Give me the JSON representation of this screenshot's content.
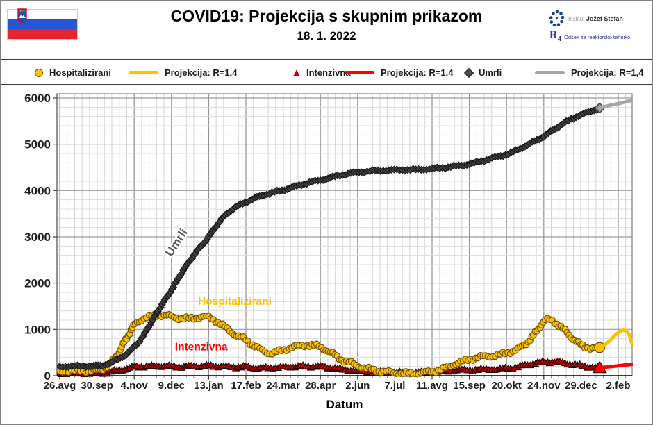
{
  "header": {
    "title": "COVID19: Projekcija s skupnim prikazom",
    "date": "18. 1. 2022",
    "flag": "slovenia-flag",
    "logo": {
      "institute_prefix": "Institut",
      "institute_bold": "Jožef Stefan",
      "dept_symbol": "R",
      "dept_symbol_sub": "4",
      "dept_name": "Odsek za reaktorsko tehniko"
    }
  },
  "legend": {
    "items": [
      {
        "label": "Hospitalizirani",
        "marker": "circle",
        "color": "#FFC000"
      },
      {
        "label": "Projekcija: R=1,4",
        "marker": "line",
        "color": "#FFC000"
      },
      {
        "label": "Intenzivna",
        "marker": "triangle",
        "color": "#D00000"
      },
      {
        "label": "Projekcija: R=1,4",
        "marker": "line",
        "color": "#FF0000"
      },
      {
        "label": "Umrli",
        "marker": "diamond",
        "color": "#4d4d4d"
      },
      {
        "label": "Projekcija: R=1,4",
        "marker": "line",
        "color": "#A6A6A6"
      }
    ]
  },
  "chart_data": {
    "type": "scatter",
    "title": "COVID19: Projekcija s skupnim prikazom",
    "subtitle": "18. 1. 2022",
    "xlabel": "Datum",
    "ylabel": "",
    "ylim": [
      0,
      6000
    ],
    "y_ticks": [
      0,
      1000,
      2000,
      3000,
      4000,
      5000,
      6000
    ],
    "y_minor_step": 200,
    "x_ticks": [
      "26.avg",
      "30.sep",
      "4.nov",
      "9.dec",
      "13.jan",
      "17.feb",
      "24.mar",
      "28.apr",
      "2.jun",
      "7.jul",
      "11.avg",
      "15.sep",
      "20.okt",
      "24.nov",
      "29.dec",
      "2.feb"
    ],
    "x_minor_per_major": 5,
    "x_unit": "series x = tick-interval index from 26.avg.2020 (ticks 35 days apart)",
    "grid": "major+minor on both axes",
    "legend_position": "top",
    "series": [
      {
        "name": "Intenzivna",
        "role": "data",
        "marker": "triangle",
        "color": "#C00000",
        "edge_color": "#1a0000",
        "end_marker": {
          "color": "#FF0000",
          "edge": "#3d0000",
          "scale": 2.0
        },
        "points": [
          [
            0,
            45
          ],
          [
            0.5,
            48
          ],
          [
            1,
            52
          ],
          [
            1.3,
            70
          ],
          [
            1.6,
            120
          ],
          [
            1.9,
            170
          ],
          [
            2.1,
            195
          ],
          [
            2.4,
            205
          ],
          [
            2.7,
            208
          ],
          [
            3,
            200
          ],
          [
            3.3,
            196
          ],
          [
            3.6,
            205
          ],
          [
            3.9,
            212
          ],
          [
            4.1,
            208
          ],
          [
            4.4,
            196
          ],
          [
            4.7,
            188
          ],
          [
            5,
            186
          ],
          [
            5.3,
            170
          ],
          [
            5.6,
            166
          ],
          [
            5.9,
            178
          ],
          [
            6.2,
            192
          ],
          [
            6.5,
            200
          ],
          [
            6.8,
            200
          ],
          [
            7,
            196
          ],
          [
            7.3,
            168
          ],
          [
            7.6,
            132
          ],
          [
            8,
            106
          ],
          [
            8.4,
            82
          ],
          [
            8.8,
            70
          ],
          [
            9.2,
            64
          ],
          [
            9.6,
            66
          ],
          [
            10,
            78
          ],
          [
            10.4,
            104
          ],
          [
            10.8,
            118
          ],
          [
            11.2,
            128
          ],
          [
            11.6,
            138
          ],
          [
            12,
            152
          ],
          [
            12.3,
            190
          ],
          [
            12.6,
            240
          ],
          [
            12.9,
            285
          ],
          [
            13.1,
            300
          ],
          [
            13.4,
            286
          ],
          [
            13.7,
            256
          ],
          [
            14,
            216
          ],
          [
            14.3,
            182
          ],
          [
            14.5,
            172
          ]
        ]
      },
      {
        "name": "Projekcija: R=1,4 (Intenzivna)",
        "role": "projection",
        "marker": null,
        "color": "#FF0000",
        "line_width": 5,
        "points": [
          [
            14.5,
            172
          ],
          [
            14.8,
            196
          ],
          [
            15.1,
            224
          ],
          [
            15.37,
            248
          ]
        ]
      },
      {
        "name": "Hospitalizirani",
        "role": "data",
        "marker": "circle",
        "color": "#FFC000",
        "edge_color": "#6b5200",
        "end_marker": {
          "color": "#FFC000",
          "edge": "#5a4300",
          "scale": 1.7
        },
        "points": [
          [
            0,
            100
          ],
          [
            0.4,
            102
          ],
          [
            0.8,
            106
          ],
          [
            1,
            115
          ],
          [
            1.2,
            165
          ],
          [
            1.5,
            400
          ],
          [
            1.8,
            820
          ],
          [
            2,
            1090
          ],
          [
            2.2,
            1215
          ],
          [
            2.5,
            1292
          ],
          [
            2.7,
            1308
          ],
          [
            2.9,
            1295
          ],
          [
            3.1,
            1262
          ],
          [
            3.3,
            1235
          ],
          [
            3.6,
            1242
          ],
          [
            3.8,
            1268
          ],
          [
            4,
            1258
          ],
          [
            4.2,
            1182
          ],
          [
            4.5,
            1010
          ],
          [
            4.8,
            845
          ],
          [
            5,
            778
          ],
          [
            5.3,
            602
          ],
          [
            5.6,
            498
          ],
          [
            5.8,
            506
          ],
          [
            6,
            556
          ],
          [
            6.3,
            626
          ],
          [
            6.6,
            658
          ],
          [
            6.8,
            654
          ],
          [
            7,
            618
          ],
          [
            7.3,
            488
          ],
          [
            7.6,
            338
          ],
          [
            7.9,
            252
          ],
          [
            8.2,
            168
          ],
          [
            8.5,
            110
          ],
          [
            8.8,
            82
          ],
          [
            9.1,
            58
          ],
          [
            9.4,
            48
          ],
          [
            9.7,
            62
          ],
          [
            10,
            92
          ],
          [
            10.3,
            148
          ],
          [
            10.6,
            252
          ],
          [
            10.9,
            322
          ],
          [
            11.2,
            392
          ],
          [
            11.5,
            420
          ],
          [
            11.8,
            448
          ],
          [
            12.1,
            516
          ],
          [
            12.4,
            618
          ],
          [
            12.7,
            846
          ],
          [
            12.95,
            1128
          ],
          [
            13.1,
            1208
          ],
          [
            13.3,
            1155
          ],
          [
            13.6,
            948
          ],
          [
            13.9,
            718
          ],
          [
            14.1,
            632
          ],
          [
            14.35,
            588
          ],
          [
            14.5,
            608
          ]
        ]
      },
      {
        "name": "Projekcija: R=1,4 (Hospitalizirani)",
        "role": "projection",
        "marker": null,
        "color": "#FFC000",
        "line_width": 5,
        "points": [
          [
            14.5,
            608
          ],
          [
            14.72,
            718
          ],
          [
            14.92,
            880
          ],
          [
            15.08,
            968
          ],
          [
            15.18,
            978
          ],
          [
            15.28,
            905
          ],
          [
            15.37,
            692
          ]
        ]
      },
      {
        "name": "Umrli",
        "role": "data",
        "marker": "diamond",
        "color": "#404040",
        "edge_color": "#141414",
        "end_marker": {
          "color": "#909090",
          "edge": "#303030",
          "scale": 1.5
        },
        "points": [
          [
            0,
            200
          ],
          [
            0.4,
            204
          ],
          [
            0.8,
            210
          ],
          [
            1,
            216
          ],
          [
            1.2,
            232
          ],
          [
            1.5,
            330
          ],
          [
            1.8,
            472
          ],
          [
            2,
            628
          ],
          [
            2.2,
            806
          ],
          [
            2.4,
            1082
          ],
          [
            2.6,
            1352
          ],
          [
            2.8,
            1606
          ],
          [
            3,
            1852
          ],
          [
            3.3,
            2254
          ],
          [
            3.6,
            2602
          ],
          [
            4,
            3002
          ],
          [
            4.3,
            3332
          ],
          [
            4.6,
            3572
          ],
          [
            5,
            3752
          ],
          [
            5.3,
            3852
          ],
          [
            5.6,
            3932
          ],
          [
            6,
            4012
          ],
          [
            6.3,
            4082
          ],
          [
            6.6,
            4152
          ],
          [
            7,
            4222
          ],
          [
            7.3,
            4282
          ],
          [
            7.6,
            4342
          ],
          [
            8,
            4392
          ],
          [
            8.4,
            4422
          ],
          [
            8.8,
            4438
          ],
          [
            9.2,
            4446
          ],
          [
            9.6,
            4452
          ],
          [
            10,
            4472
          ],
          [
            10.5,
            4512
          ],
          [
            11,
            4572
          ],
          [
            11.4,
            4652
          ],
          [
            12,
            4782
          ],
          [
            12.3,
            4882
          ],
          [
            12.6,
            5002
          ],
          [
            13,
            5172
          ],
          [
            13.3,
            5332
          ],
          [
            13.6,
            5482
          ],
          [
            13.9,
            5602
          ],
          [
            14.2,
            5692
          ],
          [
            14.5,
            5782
          ]
        ]
      },
      {
        "name": "Projekcija: R=1,4 (Umrli)",
        "role": "projection",
        "marker": null,
        "color": "#A6A6A6",
        "line_width": 5,
        "points": [
          [
            14.5,
            5782
          ],
          [
            14.8,
            5845
          ],
          [
            15.1,
            5895
          ],
          [
            15.37,
            5952
          ]
        ]
      }
    ],
    "annotations": [
      {
        "text": "Umrli",
        "color": "#595959",
        "x": 3.22,
        "y": 2830,
        "rotate": -57,
        "halo": true
      },
      {
        "text": "Hospitalizirani",
        "color": "#FFC000",
        "x": 4.7,
        "y": 1530,
        "rotate": 0,
        "halo": false
      },
      {
        "text": "Intenzivna",
        "color": "#FF0000",
        "x": 3.8,
        "y": 545,
        "rotate": 0,
        "halo": false
      }
    ]
  },
  "flag_colors": {
    "white": "#FFFFFF",
    "blue": "#2456D6",
    "red": "#E8232E"
  }
}
